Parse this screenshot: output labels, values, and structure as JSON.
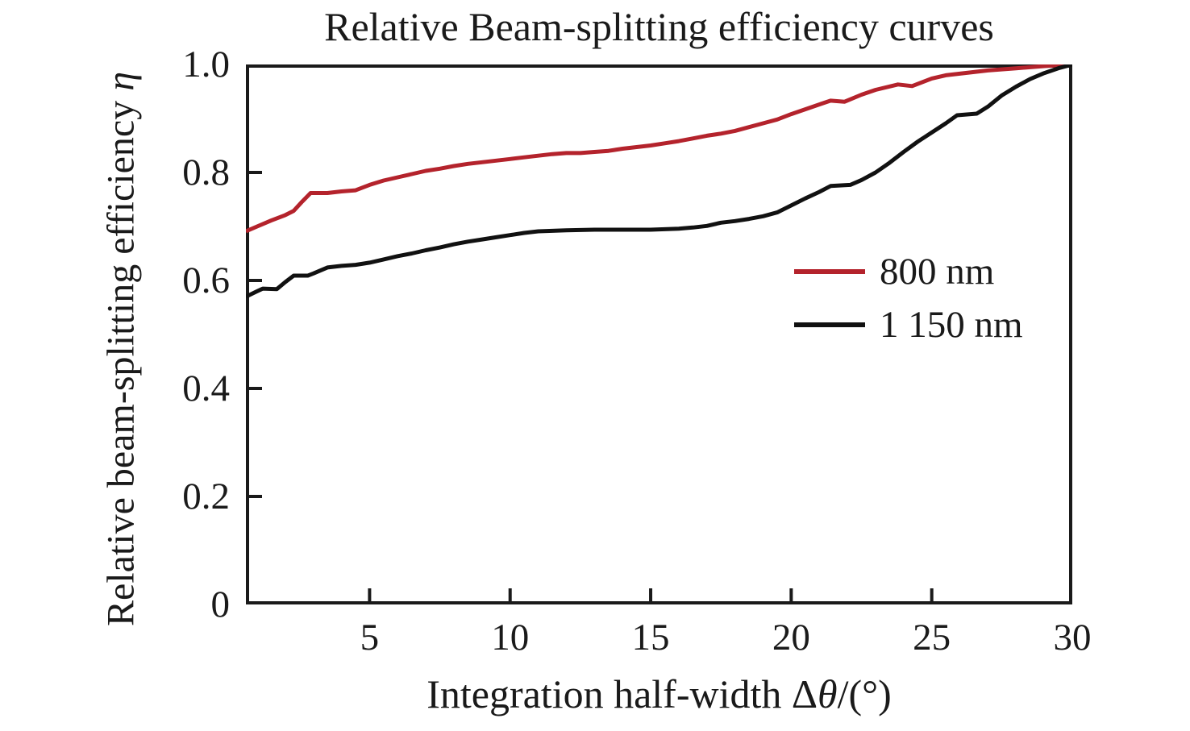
{
  "chart_data": {
    "type": "line",
    "title": "Relative Beam-splitting efficiency curves",
    "xlabel": "Integration half-width Δθ/(°)",
    "ylabel": "Relative beam-splitting efficiency η",
    "xlim": [
      0.6,
      30
    ],
    "ylim": [
      0,
      1.0
    ],
    "xticks": [
      5,
      10,
      15,
      20,
      25,
      30
    ],
    "yticks": [
      {
        "value": 0,
        "label": "0"
      },
      {
        "value": 0.2,
        "label": "0.2"
      },
      {
        "value": 0.4,
        "label": "0.4"
      },
      {
        "value": 0.6,
        "label": "0.6"
      },
      {
        "value": 0.8,
        "label": "0.8"
      },
      {
        "value": 1.0,
        "label": "1.0"
      }
    ],
    "grid": false,
    "legend_position": "center-right",
    "axis_color": "#1a1a1a",
    "tick_direction": "in",
    "series": [
      {
        "name": "800 nm",
        "color": "#b4232c",
        "points": [
          [
            0.6,
            0.691
          ],
          [
            1,
            0.7
          ],
          [
            1.5,
            0.711
          ],
          [
            2,
            0.721
          ],
          [
            2.3,
            0.729
          ],
          [
            2.6,
            0.746
          ],
          [
            2.9,
            0.762
          ],
          [
            3.5,
            0.762
          ],
          [
            4,
            0.765
          ],
          [
            4.5,
            0.767
          ],
          [
            5,
            0.777
          ],
          [
            5.5,
            0.785
          ],
          [
            6,
            0.791
          ],
          [
            6.5,
            0.797
          ],
          [
            7,
            0.803
          ],
          [
            7.5,
            0.807
          ],
          [
            8,
            0.812
          ],
          [
            8.5,
            0.816
          ],
          [
            9,
            0.819
          ],
          [
            9.5,
            0.822
          ],
          [
            10,
            0.825
          ],
          [
            10.5,
            0.828
          ],
          [
            11,
            0.831
          ],
          [
            11.5,
            0.834
          ],
          [
            12,
            0.836
          ],
          [
            12.5,
            0.836
          ],
          [
            13,
            0.838
          ],
          [
            13.5,
            0.84
          ],
          [
            14,
            0.844
          ],
          [
            14.5,
            0.847
          ],
          [
            15,
            0.85
          ],
          [
            15.5,
            0.854
          ],
          [
            16,
            0.858
          ],
          [
            16.5,
            0.863
          ],
          [
            17,
            0.868
          ],
          [
            17.5,
            0.872
          ],
          [
            18,
            0.877
          ],
          [
            18.5,
            0.884
          ],
          [
            19,
            0.891
          ],
          [
            19.5,
            0.898
          ],
          [
            20,
            0.908
          ],
          [
            20.5,
            0.917
          ],
          [
            21,
            0.926
          ],
          [
            21.4,
            0.933
          ],
          [
            21.9,
            0.931
          ],
          [
            22.5,
            0.944
          ],
          [
            23,
            0.953
          ],
          [
            23.8,
            0.963
          ],
          [
            24.3,
            0.96
          ],
          [
            25,
            0.974
          ],
          [
            25.5,
            0.98
          ],
          [
            26,
            0.983
          ],
          [
            27,
            0.989
          ],
          [
            28,
            0.993
          ],
          [
            29,
            0.997
          ],
          [
            30,
            1.0
          ]
        ]
      },
      {
        "name": "1 150 nm",
        "color": "#111111",
        "points": [
          [
            0.6,
            0.57
          ],
          [
            1,
            0.58
          ],
          [
            1.2,
            0.585
          ],
          [
            1.7,
            0.584
          ],
          [
            2,
            0.597
          ],
          [
            2.3,
            0.609
          ],
          [
            2.8,
            0.609
          ],
          [
            3,
            0.613
          ],
          [
            3.5,
            0.624
          ],
          [
            4,
            0.627
          ],
          [
            4.5,
            0.629
          ],
          [
            5,
            0.633
          ],
          [
            5.5,
            0.639
          ],
          [
            6,
            0.645
          ],
          [
            6.5,
            0.65
          ],
          [
            7,
            0.656
          ],
          [
            7.5,
            0.661
          ],
          [
            8,
            0.667
          ],
          [
            8.5,
            0.672
          ],
          [
            9,
            0.676
          ],
          [
            9.5,
            0.68
          ],
          [
            10,
            0.684
          ],
          [
            10.5,
            0.688
          ],
          [
            11,
            0.691
          ],
          [
            11.5,
            0.692
          ],
          [
            12,
            0.693
          ],
          [
            13,
            0.694
          ],
          [
            14,
            0.694
          ],
          [
            15,
            0.694
          ],
          [
            16,
            0.696
          ],
          [
            16.5,
            0.698
          ],
          [
            17,
            0.701
          ],
          [
            17.5,
            0.707
          ],
          [
            18,
            0.71
          ],
          [
            18.5,
            0.714
          ],
          [
            19,
            0.719
          ],
          [
            19.5,
            0.726
          ],
          [
            20,
            0.739
          ],
          [
            20.5,
            0.752
          ],
          [
            21,
            0.764
          ],
          [
            21.4,
            0.775
          ],
          [
            22.1,
            0.777
          ],
          [
            22.5,
            0.786
          ],
          [
            23,
            0.8
          ],
          [
            23.5,
            0.818
          ],
          [
            24,
            0.838
          ],
          [
            24.5,
            0.857
          ],
          [
            25,
            0.874
          ],
          [
            25.5,
            0.891
          ],
          [
            25.9,
            0.906
          ],
          [
            26.6,
            0.909
          ],
          [
            27,
            0.922
          ],
          [
            27.5,
            0.943
          ],
          [
            28,
            0.959
          ],
          [
            28.5,
            0.973
          ],
          [
            29,
            0.984
          ],
          [
            29.5,
            0.993
          ],
          [
            30,
            1.0
          ]
        ]
      }
    ]
  }
}
